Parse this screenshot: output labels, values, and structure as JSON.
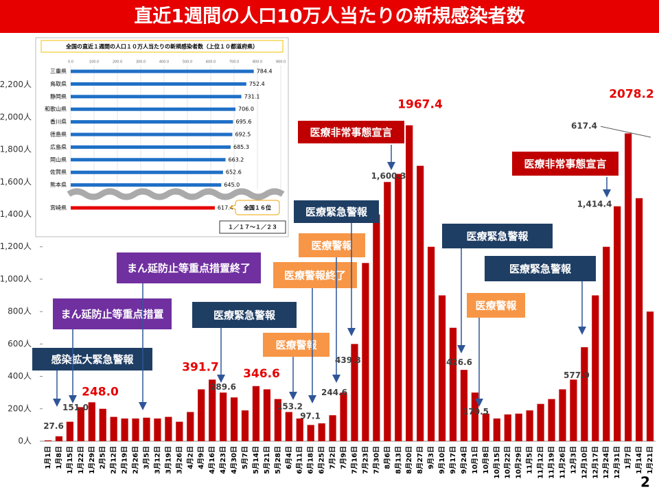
{
  "header": {
    "title": "直近1週間の人口10万人当たりの新規感染者数",
    "page": "2"
  },
  "chart_data": [
    {
      "type": "bar",
      "color": "#c00000",
      "categories": [
        "1月1日",
        "1月8日",
        "1月15日",
        "1月22日",
        "1月29日",
        "2月5日",
        "2月12日",
        "2月19日",
        "2月26日",
        "3月5日",
        "3月12日",
        "3月19日",
        "3月26日",
        "4月2日",
        "4月9日",
        "4月16日",
        "4月23日",
        "4月30日",
        "5月7日",
        "5月14日",
        "5月21日",
        "5月28日",
        "6月4日",
        "6月11日",
        "6月18日",
        "6月25日",
        "7月2日",
        "7月9日",
        "7月16日",
        "7月23日",
        "7月30日",
        "8月6日",
        "8月13日",
        "8月20日",
        "8月27日",
        "9月3日",
        "9月10日",
        "9月17日",
        "9月24日",
        "10月1日",
        "10月8日",
        "10月15日",
        "10月22日",
        "10月29日",
        "11月5日",
        "11月12日",
        "11月19日",
        "11月26日",
        "12月3日",
        "12月10日",
        "12月17日",
        "12月24日",
        "12月31日",
        "1月7日",
        "1月14日",
        "1月21日"
      ],
      "values": [
        5,
        30,
        120,
        210,
        240,
        200,
        150,
        140,
        140,
        145,
        140,
        150,
        120,
        180,
        320,
        380,
        300,
        270,
        190,
        340,
        320,
        260,
        180,
        140,
        100,
        110,
        160,
        300,
        600,
        1100,
        1400,
        1600,
        1650,
        1950,
        1700,
        1200,
        900,
        700,
        440,
        300,
        170,
        140,
        165,
        170,
        190,
        230,
        260,
        320,
        380,
        580,
        900,
        1200,
        1450,
        1900,
        1500,
        800
      ],
      "ylim": [
        0,
        2300
      ],
      "yticks": [
        {
          "value": 0,
          "label": "0人"
        },
        {
          "value": 200,
          "label": "200人"
        },
        {
          "value": 400,
          "label": "400人"
        },
        {
          "value": 600,
          "label": "600人"
        },
        {
          "value": 800,
          "label": "800人"
        },
        {
          "value": 1000,
          "label": "1,000人"
        },
        {
          "value": 1200,
          "label": "1,200人"
        },
        {
          "value": 1400,
          "label": "1,400人"
        },
        {
          "value": 1600,
          "label": "1,600人"
        },
        {
          "value": 1800,
          "label": "1,800人"
        },
        {
          "value": 2000,
          "label": "2,000人"
        },
        {
          "value": 2200,
          "label": "2,200人"
        }
      ],
      "annotations": [
        {
          "value": 27.6,
          "label": "27.6",
          "color": "#404040"
        },
        {
          "value": 151.0,
          "label": "151.0",
          "color": "#404040"
        },
        {
          "value": 248.0,
          "label": "248.0",
          "color": "#e60000"
        },
        {
          "value": 391.7,
          "label": "391.7",
          "color": "#e60000"
        },
        {
          "value": 289.6,
          "label": "289.6",
          "color": "#404040"
        },
        {
          "value": 346.6,
          "label": "346.6",
          "color": "#e60000"
        },
        {
          "value": 153.2,
          "label": "153.2",
          "color": "#404040"
        },
        {
          "value": 97.1,
          "label": "97.1",
          "color": "#404040"
        },
        {
          "value": 244.6,
          "label": "244.6",
          "color": "#404040"
        },
        {
          "value": 439.3,
          "label": "439.3",
          "color": "#404040"
        },
        {
          "value": 1600.3,
          "label": "1,600.3",
          "color": "#404040"
        },
        {
          "value": 1967.4,
          "label": "1967.4",
          "color": "#e60000"
        },
        {
          "value": 426.6,
          "label": "426.6",
          "color": "#404040"
        },
        {
          "value": 170.5,
          "label": "170.5",
          "color": "#404040"
        },
        {
          "value": 577.9,
          "label": "577.9",
          "color": "#404040"
        },
        {
          "value": 1414.4,
          "label": "1,414.4",
          "color": "#404040"
        },
        {
          "value": 2078.2,
          "label": "2078.2",
          "color": "#e60000"
        },
        {
          "value": 617.4,
          "label": "617.4",
          "color": "#404040"
        }
      ],
      "callouts": [
        {
          "text": "感染拡大緊急警報",
          "color": "#1f3e64"
        },
        {
          "text": "まん延防止等重点措置",
          "color": "#7030a0"
        },
        {
          "text": "まん延防止等重点措置終了",
          "color": "#7030a0"
        },
        {
          "text": "医療緊急警報",
          "color": "#1f3e64"
        },
        {
          "text": "医療警報",
          "color": "#f79646"
        },
        {
          "text": "医療警報終了",
          "color": "#f79646"
        },
        {
          "text": "医療警報",
          "color": "#f79646"
        },
        {
          "text": "医療緊急警報",
          "color": "#1f3e64"
        },
        {
          "text": "医療非常事態宣言",
          "color": "#c00000"
        },
        {
          "text": "医療緊急警報",
          "color": "#1f3e64"
        },
        {
          "text": "医療警報",
          "color": "#f79646"
        },
        {
          "text": "医療緊急警報",
          "color": "#1f3e64"
        },
        {
          "text": "医療非常事態宣言",
          "color": "#c00000"
        }
      ]
    },
    {
      "type": "hbar",
      "title": "全国の直近１週間の人口１０万人当たりの新規感染者数（上位１０都道府県）",
      "categories": [
        "三重県",
        "鳥取県",
        "静岡県",
        "和歌山県",
        "香川県",
        "徳島県",
        "広島県",
        "岡山県",
        "佐賀県",
        "熊本県",
        "宮崎県"
      ],
      "values": [
        784.4,
        752.4,
        731.1,
        706.0,
        695.6,
        692.5,
        685.3,
        663.2,
        652.6,
        645.0,
        617.4
      ],
      "value_labels": [
        "784.4",
        "752.4",
        "731.1",
        "706.0",
        "695.6",
        "692.5",
        "685.3",
        "663.2",
        "652.6",
        "645.0",
        "617.4"
      ],
      "colors": [
        "#1f6fc6",
        "#1f6fc6",
        "#1f6fc6",
        "#1f6fc6",
        "#1f6fc6",
        "#1f6fc6",
        "#1f6fc6",
        "#1f6fc6",
        "#1f6fc6",
        "#1f6fc6",
        "#e60000"
      ],
      "xlim": [
        0,
        900
      ],
      "xticks": [
        {
          "value": 0,
          "label": "0.0"
        },
        {
          "value": 100,
          "label": "100.0"
        },
        {
          "value": 200,
          "label": "200.0"
        },
        {
          "value": 300,
          "label": "300.0"
        },
        {
          "value": 400,
          "label": "400.0"
        },
        {
          "value": 500,
          "label": "500.0"
        },
        {
          "value": 600,
          "label": "600.0"
        },
        {
          "value": 700,
          "label": "700.0"
        },
        {
          "value": 800,
          "label": "800.0"
        },
        {
          "value": 900,
          "label": "900.0"
        }
      ],
      "rank_note": "全国１６位",
      "period": "１／１７～１／２３"
    }
  ]
}
